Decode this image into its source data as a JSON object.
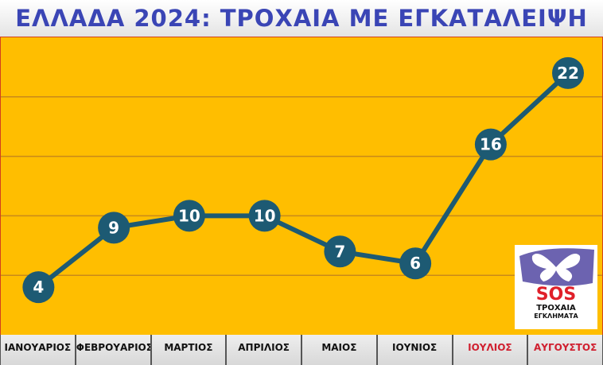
{
  "chart_data": {
    "type": "line",
    "title": "ΕΛΛΑΔΑ 2024: ΤΡΟΧΑΙΑ ΜΕ ΕΓΚΑΤΑΛΕΙΨΗ",
    "categories": [
      "ΙΑΝΟΥΑΡΙΟΣ",
      "ΦΕΒΡΟΥΑΡΙΟΣ",
      "ΜΑΡΤΙΟΣ",
      "ΑΠΡΙΛΙΟΣ",
      "ΜΑΙΟΣ",
      "ΙΟΥΝΙΟΣ",
      "ΙΟΥΛΙΟΣ",
      "ΑΥΓΟΥΣΤΟΣ"
    ],
    "highlighted_categories": [
      "ΙΟΥΛΙΟΣ",
      "ΑΥΓΟΥΣΤΟΣ"
    ],
    "values": [
      4,
      9,
      10,
      10,
      7,
      6,
      16,
      22
    ],
    "ylim": [
      0,
      25
    ],
    "grid": true,
    "grid_step": 5,
    "xlabel": "",
    "ylabel": "",
    "colors": {
      "background": "#ffbe00",
      "line": "#1d5a73",
      "marker": "#1d5a73",
      "label": "#ffffff",
      "title": "#3a45b5",
      "highlight": "#d02030"
    }
  },
  "logo": {
    "text": "SOS",
    "line1": "ΤΡΟΧΑΙΑ",
    "line2": "ΕΓΚΛΗΜΑΤΑ"
  }
}
